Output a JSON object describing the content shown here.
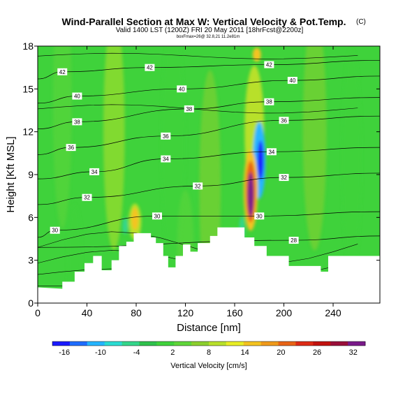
{
  "header": {
    "title": "Wind-Parallel Section at Max W: Vertical Velocity & Pot.Temp.",
    "copyright_mark": "(C)",
    "valid_line": "Valid 1400 LST (1200Z) FRI 20 May 2011 [18hrFcst@2200z]",
    "info_line": "boxFmax=26@ 32.8,21 11.2e81m"
  },
  "chart_data": {
    "type": "heatmap",
    "title": "Wind-Parallel Section at Max W: Vertical Velocity & Pot.Temp.",
    "xlabel": "Distance [nm]",
    "ylabel": "Height [Kft MSL]",
    "xlim": [
      0,
      278
    ],
    "ylim": [
      0,
      18
    ],
    "xticks": [
      0,
      40,
      80,
      120,
      160,
      200,
      240
    ],
    "yticks": [
      0,
      3,
      6,
      9,
      12,
      15,
      18
    ],
    "grid": false,
    "field": "Vertical Velocity [cm/s]",
    "background_value": 2,
    "colorbar": {
      "title": "Vertical Velocity [cm/s]",
      "tick_labels": [
        "-16",
        "-10",
        "-4",
        "2",
        "8",
        "14",
        "20",
        "26",
        "32"
      ],
      "tick_values": [
        -16,
        -10,
        -4,
        2,
        8,
        14,
        20,
        26,
        32
      ],
      "range": [
        -18,
        34
      ],
      "colors": [
        "#1a1aff",
        "#1f6dff",
        "#25b5ff",
        "#2bdcd2",
        "#34d68b",
        "#2fc14c",
        "#3fd23b",
        "#5fd63a",
        "#8ccf2e",
        "#b8e02b",
        "#e8ee25",
        "#f4c320",
        "#f09a1b",
        "#e86417",
        "#dd2b16",
        "#c2130f",
        "#9a0f3a",
        "#7a1a8a"
      ]
    },
    "terrain_height": [
      [
        0,
        1.1
      ],
      [
        20,
        1.0
      ],
      [
        20,
        1.5
      ],
      [
        30,
        1.5
      ],
      [
        30,
        2.2
      ],
      [
        38,
        2.2
      ],
      [
        38,
        2.8
      ],
      [
        45,
        2.8
      ],
      [
        45,
        3.3
      ],
      [
        52,
        3.3
      ],
      [
        52,
        2.3
      ],
      [
        60,
        2.3
      ],
      [
        60,
        3.0
      ],
      [
        66,
        3.0
      ],
      [
        66,
        4.0
      ],
      [
        72,
        4.0
      ],
      [
        72,
        4.3
      ],
      [
        78,
        4.3
      ],
      [
        78,
        4.9
      ],
      [
        92,
        4.9
      ],
      [
        92,
        4.6
      ],
      [
        96,
        4.6
      ],
      [
        96,
        4.2
      ],
      [
        102,
        4.2
      ],
      [
        102,
        3.3
      ],
      [
        106,
        3.3
      ],
      [
        106,
        2.5
      ],
      [
        112,
        2.5
      ],
      [
        112,
        3.3
      ],
      [
        118,
        3.3
      ],
      [
        118,
        4.1
      ],
      [
        124,
        4.1
      ],
      [
        124,
        3.6
      ],
      [
        130,
        3.6
      ],
      [
        130,
        4.2
      ],
      [
        140,
        4.2
      ],
      [
        140,
        4.7
      ],
      [
        146,
        4.7
      ],
      [
        146,
        5.3
      ],
      [
        168,
        5.3
      ],
      [
        168,
        4.6
      ],
      [
        176,
        4.6
      ],
      [
        176,
        4.0
      ],
      [
        186,
        4.0
      ],
      [
        186,
        3.3
      ],
      [
        204,
        3.3
      ],
      [
        204,
        2.6
      ],
      [
        230,
        2.6
      ],
      [
        230,
        2.2
      ],
      [
        236,
        2.2
      ],
      [
        236,
        3.3
      ],
      [
        278,
        3.3
      ]
    ],
    "features": [
      {
        "name": "updraft core",
        "x": 173,
        "y": 7.8,
        "w_max": 32
      },
      {
        "name": "downdraft core",
        "x": 181,
        "y": 10.0,
        "w_min": -16
      },
      {
        "name": "ridge updraft",
        "x": 79,
        "y": 5.8,
        "w_max": 14
      }
    ],
    "isentrope_labels": [
      {
        "text": "42",
        "x": 20,
        "y": 16.2
      },
      {
        "text": "42",
        "x": 91,
        "y": 16.5
      },
      {
        "text": "42",
        "x": 188,
        "y": 16.7
      },
      {
        "text": "40",
        "x": 32,
        "y": 14.5
      },
      {
        "text": "40",
        "x": 117,
        "y": 15.0
      },
      {
        "text": "40",
        "x": 207,
        "y": 15.6
      },
      {
        "text": "38",
        "x": 32,
        "y": 12.7
      },
      {
        "text": "38",
        "x": 123,
        "y": 13.6
      },
      {
        "text": "38",
        "x": 188,
        "y": 14.1
      },
      {
        "text": "36",
        "x": 27,
        "y": 10.9
      },
      {
        "text": "36",
        "x": 104,
        "y": 11.7
      },
      {
        "text": "36",
        "x": 200,
        "y": 12.8
      },
      {
        "text": "34",
        "x": 46,
        "y": 9.2
      },
      {
        "text": "34",
        "x": 104,
        "y": 10.1
      },
      {
        "text": "34",
        "x": 190,
        "y": 10.6
      },
      {
        "text": "32",
        "x": 40,
        "y": 7.4
      },
      {
        "text": "32",
        "x": 130,
        "y": 8.2
      },
      {
        "text": "32",
        "x": 200,
        "y": 8.8
      },
      {
        "text": "30",
        "x": 14,
        "y": 5.1
      },
      {
        "text": "30",
        "x": 97,
        "y": 6.1
      },
      {
        "text": "30",
        "x": 180,
        "y": 6.1
      },
      {
        "text": "28",
        "x": 208,
        "y": 4.4
      }
    ]
  }
}
